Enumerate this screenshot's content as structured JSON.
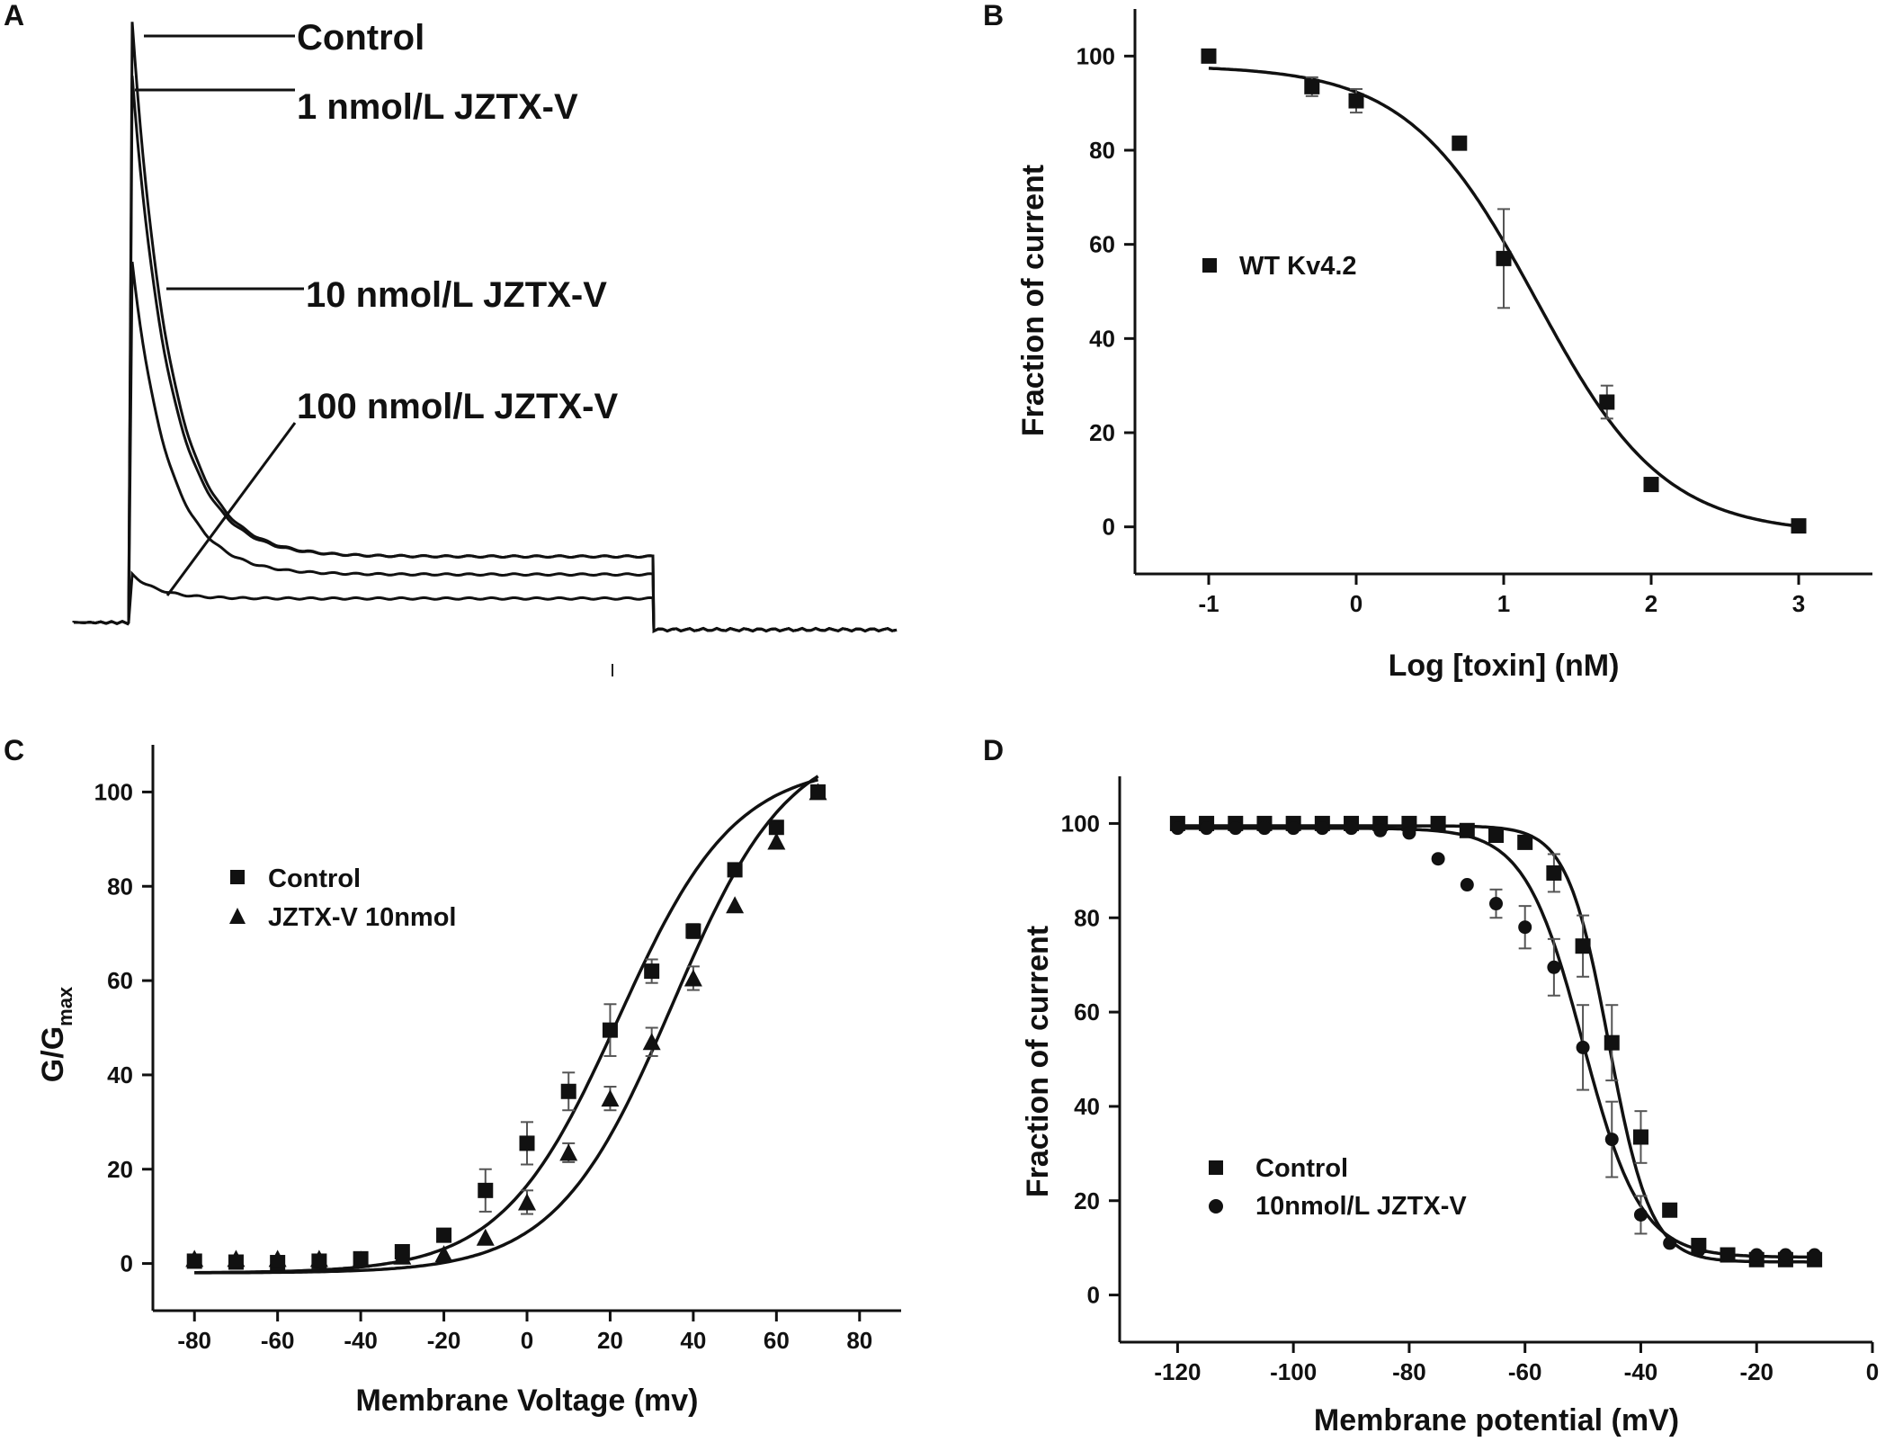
{
  "chart_data": [
    {
      "panel": "A",
      "type": "line",
      "title": "",
      "xlabel": "",
      "ylabel": "",
      "series": [
        {
          "name": "Control",
          "peak": 100,
          "steady": 11
        },
        {
          "name": "1 nmol/L JZTX-V",
          "peak": 91,
          "steady": 11
        },
        {
          "name": "10 nmol/L JZTX-V",
          "peak": 60,
          "steady": 8
        },
        {
          "name": "100 nmol/L JZTX-V",
          "peak": 8,
          "steady": 4
        }
      ]
    },
    {
      "panel": "B",
      "type": "scatter",
      "title": "",
      "xlabel": "Log [toxin] (nM)",
      "ylabel": "Fraction of current",
      "xlim": [
        -1.5,
        3.5
      ],
      "ylim": [
        -10,
        110
      ],
      "xticks": [
        -1,
        0,
        1,
        2,
        3
      ],
      "yticks": [
        0,
        20,
        40,
        60,
        80,
        100
      ],
      "series": [
        {
          "name": "WT Kv4.2",
          "marker": "square",
          "x": [
            -1,
            -0.3,
            0,
            0.7,
            1,
            1.7,
            2,
            3
          ],
          "y": [
            100,
            93.5,
            90.5,
            81.5,
            57,
            26.5,
            9,
            0.2
          ],
          "err": [
            0,
            2,
            2.5,
            0,
            10.5,
            3.5,
            0,
            0
          ]
        }
      ],
      "fit": {
        "top": 98,
        "bottom": -1.5,
        "log_ic50": 1.22,
        "hill": 1.0
      }
    },
    {
      "panel": "C",
      "type": "scatter",
      "title": "",
      "xlabel": "Membrane Voltage (mv)",
      "ylabel": "G/G",
      "ylabel_sub": "max",
      "xlim": [
        -90,
        90
      ],
      "ylim": [
        -10,
        110
      ],
      "xticks": [
        -80,
        -60,
        -40,
        -20,
        0,
        20,
        40,
        60,
        80
      ],
      "yticks": [
        0,
        20,
        40,
        60,
        80,
        100
      ],
      "series": [
        {
          "name": "Control",
          "marker": "square",
          "x": [
            -80,
            -70,
            -60,
            -50,
            -40,
            -30,
            -20,
            -10,
            0,
            10,
            20,
            30,
            40,
            50,
            60,
            70
          ],
          "y": [
            0.5,
            0.3,
            0.2,
            0.5,
            1,
            2.5,
            6,
            15.5,
            25.5,
            36.5,
            49.5,
            62,
            70.5,
            83.5,
            92.5,
            100
          ],
          "err": [
            0,
            0,
            0,
            0,
            0,
            0,
            0,
            4.5,
            4.5,
            4,
            5.5,
            2.5,
            1.5,
            0,
            0,
            0
          ],
          "fit": {
            "bottom": -2,
            "top": 106,
            "v_half": 22,
            "slope": 14
          }
        },
        {
          "name": "JZTX-V 10nmol",
          "marker": "triangle",
          "x": [
            -80,
            -70,
            -60,
            -50,
            -40,
            -30,
            -20,
            -10,
            0,
            10,
            20,
            30,
            40,
            50,
            60,
            70
          ],
          "y": [
            1,
            1,
            1,
            1,
            0.8,
            1.5,
            2,
            5.5,
            13,
            23.5,
            35,
            47,
            60.5,
            76,
            89.5,
            100
          ],
          "err": [
            0,
            0,
            0,
            0,
            0,
            0,
            0,
            0,
            2.5,
            2,
            2.5,
            3,
            2.5,
            0,
            0,
            0
          ],
          "fit": {
            "bottom": -2,
            "top": 112,
            "v_half": 35,
            "slope": 14
          }
        }
      ]
    },
    {
      "panel": "D",
      "type": "scatter",
      "title": "",
      "xlabel": "Membrane potential (mV)",
      "ylabel": "Fraction of current",
      "xlim": [
        -130,
        0
      ],
      "ylim": [
        -10,
        110
      ],
      "xticks": [
        -120,
        -100,
        -80,
        -60,
        -40,
        -20,
        0
      ],
      "yticks": [
        0,
        20,
        40,
        60,
        80,
        100
      ],
      "series": [
        {
          "name": "Control",
          "marker": "square",
          "x": [
            -120,
            -115,
            -110,
            -105,
            -100,
            -95,
            -90,
            -85,
            -80,
            -75,
            -70,
            -65,
            -60,
            -55,
            -50,
            -45,
            -40,
            -35,
            -30,
            -25,
            -20,
            -15,
            -10
          ],
          "y": [
            100,
            100,
            100,
            100,
            100,
            100,
            100,
            100,
            100,
            100,
            98.5,
            97.5,
            96,
            89.5,
            74,
            53.5,
            33.5,
            18,
            10.5,
            8.5,
            7.5,
            7.5,
            7.5
          ],
          "err": [
            0,
            0,
            0,
            0,
            0,
            0,
            0,
            0,
            0,
            0,
            0,
            0,
            0,
            4,
            6.5,
            8,
            5.5,
            0,
            0,
            0,
            0,
            0,
            0
          ],
          "fit": {
            "top": 99.5,
            "bottom": 7,
            "v_half": -45.5,
            "k": 3.6
          }
        },
        {
          "name": "10nmol/L JZTX-V",
          "marker": "circle",
          "x": [
            -120,
            -115,
            -110,
            -105,
            -100,
            -95,
            -90,
            -85,
            -80,
            -75,
            -70,
            -65,
            -60,
            -55,
            -50,
            -45,
            -40,
            -35,
            -30,
            -25,
            -20,
            -15,
            -10
          ],
          "y": [
            99,
            99,
            99,
            99,
            99,
            99,
            99,
            98.5,
            98,
            92.5,
            87,
            83,
            78,
            69.5,
            52.5,
            33,
            17,
            11,
            9.5,
            8.5,
            8.5,
            8.5,
            8.5
          ],
          "err": [
            0,
            0,
            0,
            0,
            0,
            0,
            0,
            0,
            0,
            0,
            0,
            3,
            4.5,
            6,
            9,
            8,
            4,
            0,
            0,
            0,
            0,
            0,
            0
          ],
          "fit": {
            "top": 99,
            "bottom": 8,
            "v_half": -50,
            "k": 5
          }
        }
      ]
    }
  ]
}
